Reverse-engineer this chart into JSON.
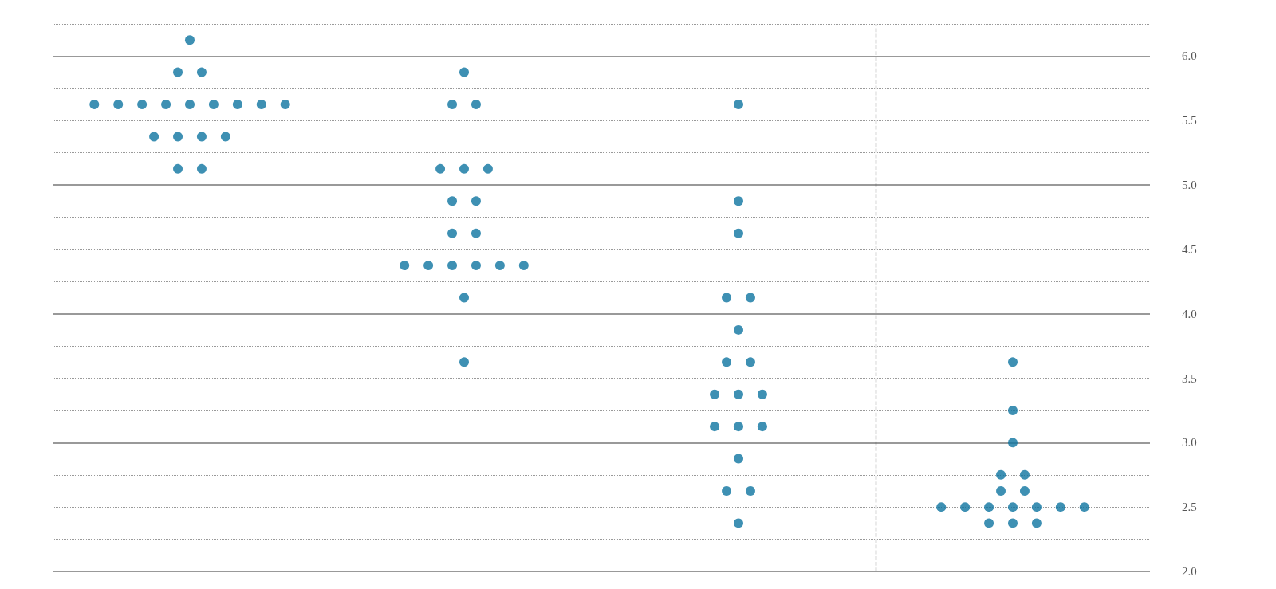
{
  "chart_data": {
    "type": "scatter",
    "categories": [
      null,
      null,
      null,
      null
    ],
    "marker": "circle",
    "grid": true,
    "series": [
      {
        "color": "#0e74a0",
        "values": [
          6.125,
          5.875,
          5.625,
          3.625
        ]
      },
      {
        "color": "#0e74a0",
        "values": [
          5.875,
          5.625,
          4.875,
          3.25
        ]
      },
      {
        "color": "#0e74a0",
        "values": [
          5.875,
          5.625,
          4.625,
          3.0
        ]
      },
      {
        "color": "#0e74a0",
        "values": [
          5.625,
          5.125,
          4.125,
          2.75
        ]
      },
      {
        "color": "#0e74a0",
        "values": [
          5.625,
          5.125,
          4.125,
          2.75
        ]
      },
      {
        "color": "#0e74a0",
        "values": [
          5.625,
          5.125,
          3.875,
          2.625
        ]
      },
      {
        "color": "#0e74a0",
        "values": [
          5.625,
          4.875,
          3.625,
          2.625
        ]
      },
      {
        "color": "#0e74a0",
        "values": [
          5.625,
          4.875,
          3.625,
          2.5
        ]
      },
      {
        "color": "#0e74a0",
        "values": [
          5.625,
          4.625,
          3.375,
          2.5
        ]
      },
      {
        "color": "#0e74a0",
        "values": [
          5.625,
          4.625,
          3.375,
          2.5
        ]
      },
      {
        "color": "#0e74a0",
        "values": [
          5.625,
          4.375,
          3.375,
          2.5
        ]
      },
      {
        "color": "#0e74a0",
        "values": [
          5.625,
          4.375,
          3.125,
          2.5
        ]
      },
      {
        "color": "#0e74a0",
        "values": [
          5.375,
          4.375,
          3.125,
          2.5
        ]
      },
      {
        "color": "#0e74a0",
        "values": [
          5.375,
          4.375,
          3.125,
          2.5
        ]
      },
      {
        "color": "#0e74a0",
        "values": [
          5.375,
          4.375,
          2.875,
          2.375
        ]
      },
      {
        "color": "#0e74a0",
        "values": [
          5.375,
          4.375,
          2.625,
          2.375
        ]
      },
      {
        "color": "#0e74a0",
        "values": [
          5.125,
          4.125,
          2.625,
          2.375
        ]
      },
      {
        "color": "#0e74a0",
        "values": [
          5.125,
          3.625,
          2.375,
          null
        ]
      }
    ],
    "ylim": [
      2.0,
      6.25
    ],
    "yticks": [
      {
        "value": 2,
        "label": "2.0"
      },
      {
        "value": 2.25,
        "label": null
      },
      {
        "value": 2.5,
        "label": "2.5"
      },
      {
        "value": 2.75,
        "label": null
      },
      {
        "value": 3,
        "label": "3.0"
      },
      {
        "value": 3.25,
        "label": null
      },
      {
        "value": 3.5,
        "label": "3.5"
      },
      {
        "value": 3.75,
        "label": null
      },
      {
        "value": 4,
        "label": "4.0"
      },
      {
        "value": 4.25,
        "label": null
      },
      {
        "value": 4.5,
        "label": "4.5"
      },
      {
        "value": 4.75,
        "label": null
      },
      {
        "value": 5,
        "label": "5.0"
      },
      {
        "value": 5.25,
        "label": null
      },
      {
        "value": 5.5,
        "label": "5.5"
      },
      {
        "value": 5.75,
        "label": null
      },
      {
        "value": 6,
        "label": "6.0"
      },
      {
        "value": 6.25,
        "label": null
      }
    ]
  }
}
